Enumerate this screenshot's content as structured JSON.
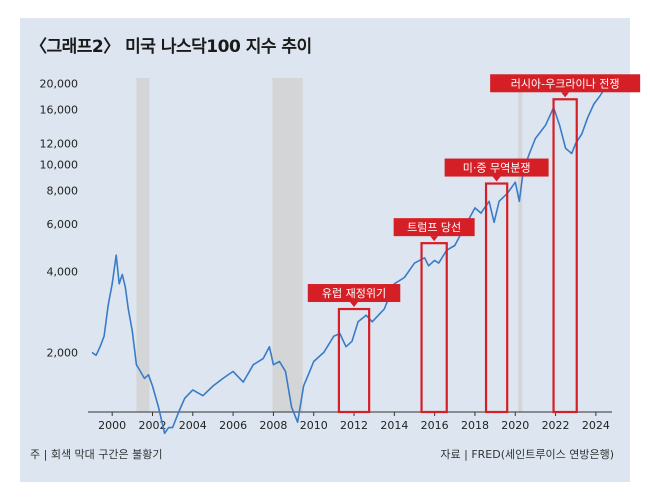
{
  "title": "〈그래프2〉 미국 나스닥100 지수 추이",
  "footnote": "주 | 회색 막대 구간은 불황기",
  "source": "자료 | FRED(세인트루이스 연방은행)",
  "colors": {
    "line": "#3a7bc8",
    "recession": "#cfcfcf",
    "annotation": "#d51f26",
    "background": "#dde6f0"
  },
  "chart_data": {
    "type": "line",
    "title": "미국 나스닥100 지수 추이",
    "y_scale": "log",
    "ylim": [
      1200,
      21000
    ],
    "y_ticks": [
      2000,
      4000,
      6000,
      8000,
      10000,
      12000,
      16000,
      20000
    ],
    "y_tick_labels": [
      "2,000",
      "4,000",
      "6,000",
      "8,000",
      "10,000",
      "12,000",
      "16,000",
      "20,000"
    ],
    "xlim": [
      1998.8,
      2024.8
    ],
    "x_ticks": [
      2000,
      2002,
      2004,
      2006,
      2008,
      2010,
      2012,
      2014,
      2016,
      2018,
      2020,
      2022,
      2024
    ],
    "x_tick_labels": [
      "2000",
      "2002",
      "2004",
      "2006",
      "2008",
      "2010",
      "2012",
      "2014",
      "2016",
      "2018",
      "2020",
      "2022",
      "2024"
    ],
    "grid": false,
    "recessions": [
      [
        2001.2,
        2001.85
      ],
      [
        2007.95,
        2009.45
      ],
      [
        2020.15,
        2020.35
      ]
    ],
    "series": [
      {
        "x": [
          1999.0,
          1999.2,
          1999.4,
          1999.6,
          1999.8,
          2000.0,
          2000.2,
          2000.35,
          2000.5,
          2000.65,
          2000.8,
          2001.0,
          2001.2,
          2001.4,
          2001.6,
          2001.8,
          2002.0,
          2002.3,
          2002.6,
          2002.8,
          2003.0,
          2003.3,
          2003.6,
          2004.0,
          2004.5,
          2005.0,
          2005.5,
          2006.0,
          2006.5,
          2007.0,
          2007.5,
          2007.8,
          2008.0,
          2008.3,
          2008.6,
          2008.9,
          2009.2,
          2009.5,
          2009.8,
          2010.0,
          2010.5,
          2011.0,
          2011.3,
          2011.6,
          2011.9,
          2012.2,
          2012.6,
          2012.9,
          2013.5,
          2014.0,
          2014.5,
          2015.0,
          2015.5,
          2015.7,
          2016.0,
          2016.2,
          2016.6,
          2017.0,
          2017.5,
          2018.0,
          2018.3,
          2018.7,
          2018.95,
          2019.2,
          2019.6,
          2020.0,
          2020.2,
          2020.4,
          2020.7,
          2021.0,
          2021.5,
          2021.9,
          2022.2,
          2022.5,
          2022.8,
          2023.0,
          2023.3,
          2023.6,
          2023.9,
          2024.2,
          2024.5,
          2024.7
        ],
        "y": [
          2000,
          1950,
          2100,
          2300,
          3000,
          3600,
          4600,
          3600,
          3900,
          3500,
          2900,
          2400,
          1800,
          1700,
          1600,
          1650,
          1500,
          1250,
          1000,
          1050,
          1050,
          1200,
          1350,
          1450,
          1380,
          1500,
          1600,
          1700,
          1550,
          1800,
          1900,
          2100,
          1800,
          1850,
          1700,
          1250,
          1100,
          1500,
          1700,
          1850,
          2000,
          2300,
          2350,
          2100,
          2200,
          2600,
          2750,
          2600,
          2900,
          3600,
          3800,
          4300,
          4500,
          4200,
          4400,
          4300,
          4800,
          5000,
          5900,
          6900,
          6600,
          7300,
          6100,
          7300,
          7800,
          8600,
          7300,
          9500,
          11000,
          12500,
          14000,
          16300,
          14000,
          11500,
          11000,
          12000,
          13000,
          15000,
          16800,
          18000,
          19500,
          20800
        ]
      }
    ],
    "annotations": [
      {
        "label": "유럽 재정위기",
        "x_range": [
          2011.25,
          2012.75
        ],
        "y_top": 2900
      },
      {
        "label": "트럼프 당선",
        "x_range": [
          2015.35,
          2016.6
        ],
        "y_top": 5100
      },
      {
        "label": "미·중 무역분쟁",
        "x_range": [
          2018.55,
          2019.6
        ],
        "y_top": 8500
      },
      {
        "label": "러시아-우크라이나 전쟁",
        "x_range": [
          2021.9,
          2023.05
        ],
        "y_top": 17500
      }
    ]
  }
}
